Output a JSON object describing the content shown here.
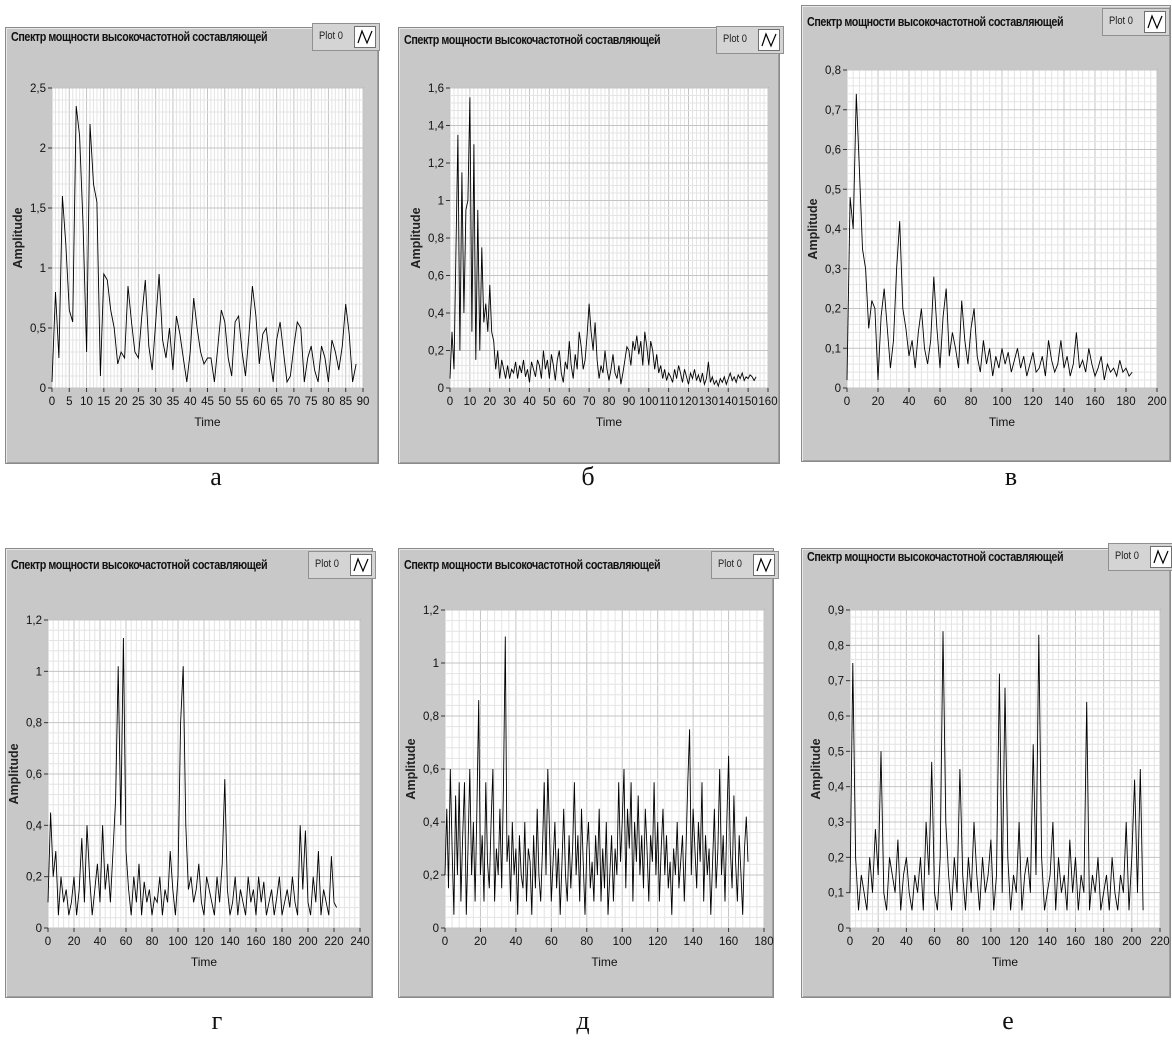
{
  "panels": [
    {
      "title": "Спектр мощности высокочастотной составляющей",
      "legend_label": "Plot 0",
      "caption": "а"
    },
    {
      "title": "Спектр мощности высокочастотной составляющей",
      "legend_label": "Plot 0",
      "caption": "б"
    },
    {
      "title": "Спектр мощности высокочастотной составляющей",
      "legend_label": "Plot 0",
      "caption": "в"
    },
    {
      "title": "Спектр мощности высокочастотной составляющей",
      "legend_label": "Plot 0",
      "caption": "г"
    },
    {
      "title": "Спектр мощности высокочастотной составляющей",
      "legend_label": "Plot 0",
      "caption": "д"
    },
    {
      "title": "Спектр мощности высокочастотной составляющей",
      "legend_label": "Plot 0",
      "caption": "е"
    }
  ],
  "chart_data": [
    {
      "type": "line",
      "xlabel": "Time",
      "ylabel": "Amplitude",
      "xlim": [
        0,
        90
      ],
      "ylim": [
        0,
        2.5
      ],
      "xticks": [
        "0",
        "5",
        "10",
        "15",
        "20",
        "25",
        "30",
        "35",
        "40",
        "45",
        "50",
        "55",
        "60",
        "65",
        "70",
        "75",
        "80",
        "85",
        "90"
      ],
      "yticks": [
        "0",
        "0,5",
        "1",
        "1,5",
        "2",
        "2,5"
      ],
      "legend": [
        "Plot 0"
      ],
      "series": [
        {
          "name": "Plot 0",
          "x_start": 0,
          "x_step": 1,
          "values": [
            0.05,
            0.8,
            0.25,
            1.6,
            1.2,
            0.65,
            0.55,
            2.35,
            2.1,
            1.35,
            0.3,
            2.2,
            1.7,
            1.55,
            0.1,
            0.95,
            0.9,
            0.65,
            0.5,
            0.2,
            0.3,
            0.25,
            0.85,
            0.55,
            0.3,
            0.25,
            0.6,
            0.9,
            0.35,
            0.15,
            0.55,
            0.95,
            0.4,
            0.25,
            0.5,
            0.15,
            0.6,
            0.45,
            0.25,
            0.05,
            0.3,
            0.75,
            0.5,
            0.3,
            0.2,
            0.25,
            0.25,
            0.05,
            0.35,
            0.65,
            0.55,
            0.25,
            0.1,
            0.55,
            0.6,
            0.3,
            0.1,
            0.45,
            0.85,
            0.6,
            0.2,
            0.45,
            0.5,
            0.25,
            0.05,
            0.4,
            0.55,
            0.3,
            0.05,
            0.1,
            0.35,
            0.55,
            0.5,
            0.05,
            0.25,
            0.35,
            0.15,
            0.05,
            0.35,
            0.25,
            0.05,
            0.4,
            0.3,
            0.15,
            0.35,
            0.7,
            0.45,
            0.05,
            0.2
          ]
        }
      ]
    },
    {
      "type": "line",
      "xlabel": "Time",
      "ylabel": "Amplitude",
      "xlim": [
        0,
        160
      ],
      "ylim": [
        0,
        1.6
      ],
      "xticks": [
        "0",
        "10",
        "20",
        "30",
        "40",
        "50",
        "60",
        "70",
        "80",
        "90",
        "100",
        "110",
        "120",
        "130",
        "140",
        "150",
        "160"
      ],
      "yticks": [
        "0",
        "0,2",
        "0,4",
        "0,6",
        "0,8",
        "1",
        "1,2",
        "1,4",
        "1,6"
      ],
      "legend": [
        "Plot 0"
      ],
      "series": [
        {
          "name": "Plot 0",
          "x_start": 0,
          "x_step": 1,
          "values": [
            0.05,
            0.3,
            0.1,
            0.75,
            1.35,
            0.2,
            1.15,
            0.4,
            0.95,
            1.0,
            1.55,
            0.3,
            1.3,
            0.15,
            0.95,
            0.2,
            0.75,
            0.35,
            0.45,
            0.3,
            0.55,
            0.3,
            0.25,
            0.1,
            0.2,
            0.05,
            0.15,
            0.1,
            0.05,
            0.12,
            0.05,
            0.1,
            0.08,
            0.14,
            0.05,
            0.12,
            0.08,
            0.15,
            0.06,
            0.1,
            0.03,
            0.14,
            0.1,
            0.06,
            0.15,
            0.12,
            0.05,
            0.2,
            0.1,
            0.15,
            0.05,
            0.18,
            0.12,
            0.04,
            0.15,
            0.2,
            0.08,
            0.03,
            0.14,
            0.1,
            0.25,
            0.12,
            0.05,
            0.18,
            0.1,
            0.3,
            0.22,
            0.1,
            0.15,
            0.28,
            0.45,
            0.3,
            0.2,
            0.35,
            0.15,
            0.05,
            0.12,
            0.08,
            0.2,
            0.1,
            0.04,
            0.1,
            0.18,
            0.08,
            0.05,
            0.12,
            0.02,
            0.08,
            0.15,
            0.22,
            0.2,
            0.12,
            0.25,
            0.2,
            0.28,
            0.18,
            0.25,
            0.12,
            0.3,
            0.22,
            0.12,
            0.25,
            0.2,
            0.1,
            0.18,
            0.08,
            0.12,
            0.05,
            0.1,
            0.04,
            0.08,
            0.06,
            0.03,
            0.1,
            0.05,
            0.12,
            0.08,
            0.03,
            0.1,
            0.06,
            0.02,
            0.08,
            0.05,
            0.1,
            0.04,
            0.07,
            0.03,
            0.08,
            0.02,
            0.05,
            0.14,
            0.03,
            0.06,
            0.02,
            0.04,
            0.01,
            0.05,
            0.03,
            0.06,
            0.02,
            0.05,
            0.08,
            0.04,
            0.06,
            0.03,
            0.07,
            0.05,
            0.08,
            0.04,
            0.06,
            0.05,
            0.07,
            0.06,
            0.04,
            0.06
          ]
        }
      ]
    },
    {
      "type": "line",
      "xlabel": "Time",
      "ylabel": "Amplitude",
      "xlim": [
        0,
        200
      ],
      "ylim": [
        0,
        0.8
      ],
      "xticks": [
        "0",
        "20",
        "40",
        "60",
        "80",
        "100",
        "120",
        "140",
        "160",
        "180",
        "200"
      ],
      "yticks": [
        "0",
        "0,1",
        "0,2",
        "0,3",
        "0,4",
        "0,5",
        "0,6",
        "0,7",
        "0,8"
      ],
      "legend": [
        "Plot 0"
      ],
      "series": [
        {
          "name": "Plot 0",
          "x_start": 0,
          "x_step": 2,
          "values": [
            0.02,
            0.48,
            0.4,
            0.74,
            0.55,
            0.35,
            0.3,
            0.15,
            0.22,
            0.2,
            0.02,
            0.18,
            0.25,
            0.15,
            0.05,
            0.12,
            0.3,
            0.42,
            0.2,
            0.15,
            0.08,
            0.12,
            0.05,
            0.14,
            0.2,
            0.1,
            0.06,
            0.12,
            0.28,
            0.15,
            0.05,
            0.18,
            0.25,
            0.08,
            0.14,
            0.1,
            0.05,
            0.22,
            0.12,
            0.06,
            0.15,
            0.2,
            0.08,
            0.04,
            0.12,
            0.06,
            0.1,
            0.03,
            0.08,
            0.05,
            0.1,
            0.06,
            0.09,
            0.04,
            0.07,
            0.1,
            0.05,
            0.08,
            0.03,
            0.06,
            0.09,
            0.04,
            0.05,
            0.08,
            0.03,
            0.12,
            0.07,
            0.04,
            0.06,
            0.12,
            0.05,
            0.08,
            0.03,
            0.06,
            0.14,
            0.05,
            0.07,
            0.04,
            0.1,
            0.06,
            0.03,
            0.05,
            0.08,
            0.02,
            0.06,
            0.04,
            0.05,
            0.03,
            0.07,
            0.04,
            0.05,
            0.03,
            0.04
          ]
        }
      ]
    },
    {
      "type": "line",
      "xlabel": "Time",
      "ylabel": "Amplitude",
      "xlim": [
        0,
        240
      ],
      "ylim": [
        0,
        1.2
      ],
      "xticks": [
        "0",
        "20",
        "40",
        "60",
        "80",
        "100",
        "120",
        "140",
        "160",
        "180",
        "200",
        "220",
        "240"
      ],
      "yticks": [
        "0",
        "0,2",
        "0,4",
        "0,6",
        "0,8",
        "1",
        "1,2"
      ],
      "legend": [
        "Plot 0"
      ],
      "series": [
        {
          "name": "Plot 0",
          "x_start": 0,
          "x_step": 2,
          "values": [
            0.1,
            0.45,
            0.2,
            0.3,
            0.05,
            0.2,
            0.1,
            0.15,
            0.05,
            0.1,
            0.2,
            0.05,
            0.15,
            0.35,
            0.1,
            0.4,
            0.2,
            0.05,
            0.15,
            0.25,
            0.1,
            0.4,
            0.15,
            0.25,
            0.1,
            0.3,
            0.5,
            1.02,
            0.4,
            1.13,
            0.3,
            0.15,
            0.05,
            0.2,
            0.1,
            0.25,
            0.05,
            0.18,
            0.1,
            0.15,
            0.05,
            0.12,
            0.1,
            0.2,
            0.05,
            0.15,
            0.1,
            0.3,
            0.15,
            0.05,
            0.2,
            0.8,
            1.02,
            0.4,
            0.15,
            0.2,
            0.1,
            0.15,
            0.25,
            0.1,
            0.05,
            0.2,
            0.15,
            0.1,
            0.05,
            0.2,
            0.1,
            0.25,
            0.58,
            0.15,
            0.05,
            0.1,
            0.2,
            0.05,
            0.15,
            0.1,
            0.05,
            0.2,
            0.1,
            0.15,
            0.05,
            0.2,
            0.1,
            0.18,
            0.05,
            0.1,
            0.15,
            0.05,
            0.12,
            0.2,
            0.05,
            0.1,
            0.15,
            0.08,
            0.2,
            0.1,
            0.05,
            0.4,
            0.15,
            0.38,
            0.1,
            0.05,
            0.2,
            0.1,
            0.3,
            0.05,
            0.15,
            0.1,
            0.05,
            0.28,
            0.1,
            0.08
          ]
        }
      ]
    },
    {
      "type": "line",
      "xlabel": "Time",
      "ylabel": "Amplitude",
      "xlim": [
        0,
        180
      ],
      "ylim": [
        0,
        1.2
      ],
      "xticks": [
        "0",
        "20",
        "40",
        "60",
        "80",
        "100",
        "120",
        "140",
        "160",
        "180"
      ],
      "yticks": [
        "0",
        "0,2",
        "0,4",
        "0,6",
        "0,8",
        "1",
        "1,2"
      ],
      "legend": [
        "Plot 0"
      ],
      "series": [
        {
          "name": "Plot 0",
          "x_start": 0,
          "x_step": 1,
          "values": [
            0.2,
            0.45,
            0.15,
            0.6,
            0.3,
            0.05,
            0.5,
            0.2,
            0.55,
            0.1,
            0.35,
            0.55,
            0.05,
            0.3,
            0.6,
            0.2,
            0.4,
            0.1,
            0.45,
            0.86,
            0.2,
            0.35,
            0.1,
            0.55,
            0.25,
            0.15,
            0.4,
            0.6,
            0.1,
            0.3,
            0.2,
            0.45,
            0.15,
            0.55,
            1.1,
            0.25,
            0.35,
            0.1,
            0.4,
            0.2,
            0.3,
            0.05,
            0.35,
            0.2,
            0.15,
            0.4,
            0.1,
            0.3,
            0.25,
            0.05,
            0.35,
            0.15,
            0.45,
            0.2,
            0.1,
            0.3,
            0.55,
            0.2,
            0.6,
            0.35,
            0.1,
            0.25,
            0.4,
            0.15,
            0.3,
            0.05,
            0.25,
            0.45,
            0.2,
            0.1,
            0.35,
            0.15,
            0.3,
            0.55,
            0.2,
            0.35,
            0.1,
            0.45,
            0.25,
            0.05,
            0.3,
            0.4,
            0.15,
            0.25,
            0.1,
            0.35,
            0.2,
            0.45,
            0.1,
            0.3,
            0.15,
            0.4,
            0.05,
            0.2,
            0.35,
            0.1,
            0.3,
            0.2,
            0.55,
            0.25,
            0.4,
            0.6,
            0.15,
            0.45,
            0.3,
            0.55,
            0.1,
            0.4,
            0.25,
            0.5,
            0.2,
            0.35,
            0.15,
            0.45,
            0.3,
            0.1,
            0.35,
            0.25,
            0.55,
            0.2,
            0.4,
            0.1,
            0.3,
            0.45,
            0.2,
            0.35,
            0.15,
            0.25,
            0.05,
            0.3,
            0.2,
            0.4,
            0.15,
            0.25,
            0.35,
            0.1,
            0.3,
            0.55,
            0.75,
            0.2,
            0.45,
            0.3,
            0.15,
            0.4,
            0.25,
            0.55,
            0.1,
            0.35,
            0.2,
            0.3,
            0.05,
            0.25,
            0.45,
            0.15,
            0.3,
            0.6,
            0.2,
            0.35,
            0.1,
            0.4,
            0.65,
            0.3,
            0.15,
            0.5,
            0.25,
            0.1,
            0.35,
            0.2,
            0.05,
            0.3,
            0.42,
            0.25
          ]
        }
      ]
    },
    {
      "type": "line",
      "xlabel": "Time",
      "ylabel": "Amplitude",
      "xlim": [
        0,
        220
      ],
      "ylim": [
        0,
        0.9
      ],
      "xticks": [
        "0",
        "20",
        "40",
        "60",
        "80",
        "100",
        "120",
        "140",
        "160",
        "180",
        "200",
        "220"
      ],
      "yticks": [
        "0",
        "0,1",
        "0,2",
        "0,3",
        "0,4",
        "0,5",
        "0,6",
        "0,7",
        "0,8",
        "0,9"
      ],
      "legend": [
        "Plot 0"
      ],
      "series": [
        {
          "name": "Plot 0",
          "x_start": 0,
          "x_step": 2,
          "values": [
            0.1,
            0.75,
            0.2,
            0.05,
            0.15,
            0.1,
            0.05,
            0.2,
            0.1,
            0.28,
            0.15,
            0.5,
            0.1,
            0.05,
            0.2,
            0.15,
            0.1,
            0.25,
            0.05,
            0.15,
            0.2,
            0.1,
            0.05,
            0.15,
            0.1,
            0.2,
            0.05,
            0.3,
            0.15,
            0.47,
            0.1,
            0.05,
            0.2,
            0.84,
            0.3,
            0.15,
            0.05,
            0.2,
            0.1,
            0.45,
            0.15,
            0.05,
            0.2,
            0.1,
            0.3,
            0.15,
            0.05,
            0.2,
            0.1,
            0.15,
            0.25,
            0.05,
            0.15,
            0.72,
            0.1,
            0.68,
            0.2,
            0.05,
            0.15,
            0.1,
            0.3,
            0.05,
            0.15,
            0.2,
            0.1,
            0.52,
            0.15,
            0.83,
            0.2,
            0.05,
            0.1,
            0.15,
            0.3,
            0.05,
            0.2,
            0.1,
            0.15,
            0.05,
            0.25,
            0.1,
            0.2,
            0.05,
            0.15,
            0.1,
            0.64,
            0.05,
            0.15,
            0.1,
            0.2,
            0.05,
            0.1,
            0.15,
            0.05,
            0.2,
            0.1,
            0.05,
            0.15,
            0.1,
            0.3,
            0.05,
            0.2,
            0.42,
            0.1,
            0.45,
            0.05
          ]
        }
      ]
    }
  ]
}
